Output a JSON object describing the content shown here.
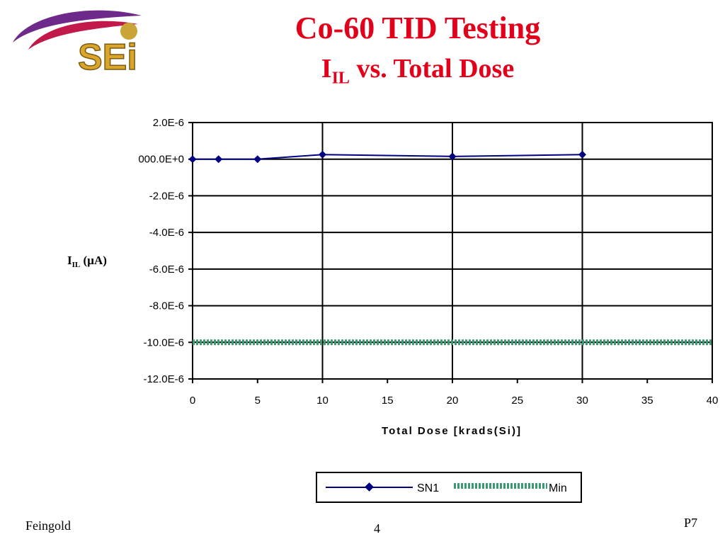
{
  "slide": {
    "title_line1": "Co-60 TID Testing",
    "title_line2_main": "I",
    "title_line2_sub": "IL",
    "title_line2_rest": " vs. Total Dose",
    "logo_text": "SEi",
    "footer_left": "Feingold",
    "footer_center": "4",
    "footer_right": "P7"
  },
  "chart_data": {
    "type": "line",
    "xlabel": "Total Dose [krads(Si)]",
    "ylabel_main": "I",
    "ylabel_sub": "IL",
    "ylabel_unit": " (µA)",
    "xlim": [
      0,
      40
    ],
    "ylim": [
      -1.2e-05,
      2e-06
    ],
    "x_ticks": [
      0,
      5,
      10,
      15,
      20,
      25,
      30,
      35,
      40
    ],
    "x_tick_labels": [
      "0",
      "5",
      "10",
      "15",
      "20",
      "25",
      "30",
      "35",
      "40"
    ],
    "y_ticks": [
      2e-06,
      0,
      -2e-06,
      -4e-06,
      -6e-06,
      -8e-06,
      -1e-05,
      -1.2e-05
    ],
    "y_tick_labels": [
      "2.0E-6",
      "000.0E+0",
      "-2.0E-6",
      "-4.0E-6",
      "-6.0E-6",
      "-8.0E-6",
      "-10.0E-6",
      "-12.0E-6"
    ],
    "grid": true,
    "legend_position": "bottom",
    "series": [
      {
        "name": "SN1",
        "color": "#000080",
        "marker": "diamond",
        "x": [
          0,
          2,
          5,
          10,
          20,
          30
        ],
        "y": [
          0.0,
          0.0,
          0.0,
          2.5e-07,
          1.5e-07,
          2.5e-07
        ]
      },
      {
        "name": "Min",
        "color": "#3c9a72",
        "style": "dotted-band",
        "x": [
          0,
          40
        ],
        "y": [
          -1e-05,
          -1e-05
        ]
      }
    ]
  }
}
